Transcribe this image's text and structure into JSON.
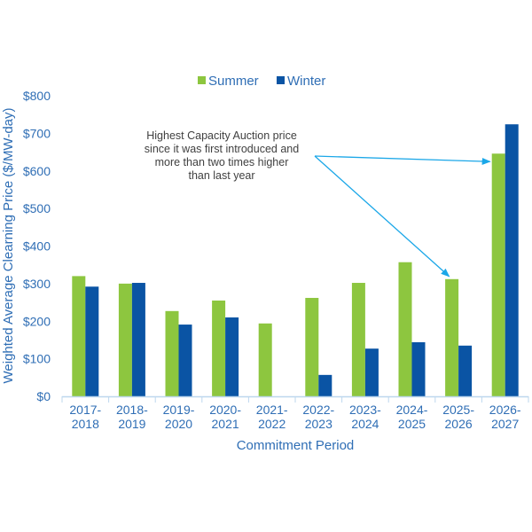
{
  "chart_data": {
    "type": "bar",
    "title": "",
    "xlabel": "Commitment Period",
    "ylabel": "Weighted Average Clearning Price ($/MW-day)",
    "ylim": [
      0,
      800
    ],
    "yticks": [
      0,
      100,
      200,
      300,
      400,
      500,
      600,
      700,
      800
    ],
    "ytick_labels": [
      "$0",
      "$100",
      "$200",
      "$300",
      "$400",
      "$500",
      "$600",
      "$700",
      "$800"
    ],
    "grid": false,
    "legend_position": "top-center",
    "categories": [
      [
        "2017-",
        "2018"
      ],
      [
        "2018-",
        "2019"
      ],
      [
        "2019-",
        "2020"
      ],
      [
        "2020-",
        "2021"
      ],
      [
        "2021-",
        "2022"
      ],
      [
        "2022-",
        "2023"
      ],
      [
        "2023-",
        "2024"
      ],
      [
        "2024-",
        "2025"
      ],
      [
        "2025-",
        "2026"
      ],
      [
        "2026-",
        "2027"
      ]
    ],
    "series": [
      {
        "name": "Summer",
        "color": "#8DC63F",
        "values": [
          320,
          300,
          227,
          255,
          194,
          262,
          302,
          357,
          312,
          646
        ]
      },
      {
        "name": "Winter",
        "color": "#0A54A4",
        "values": [
          292,
          302,
          191,
          210,
          null,
          57,
          127,
          144,
          135,
          724
        ]
      }
    ],
    "annotation": {
      "lines": [
        "Highest Capacity Auction price",
        "since it was first introduced and",
        "more than two times higher",
        "than last year"
      ],
      "arrow_color": "#1BA7E8",
      "targets": [
        {
          "category_index": 9,
          "series": "Summer"
        },
        {
          "category_index": 8,
          "series": "Summer"
        }
      ]
    }
  }
}
